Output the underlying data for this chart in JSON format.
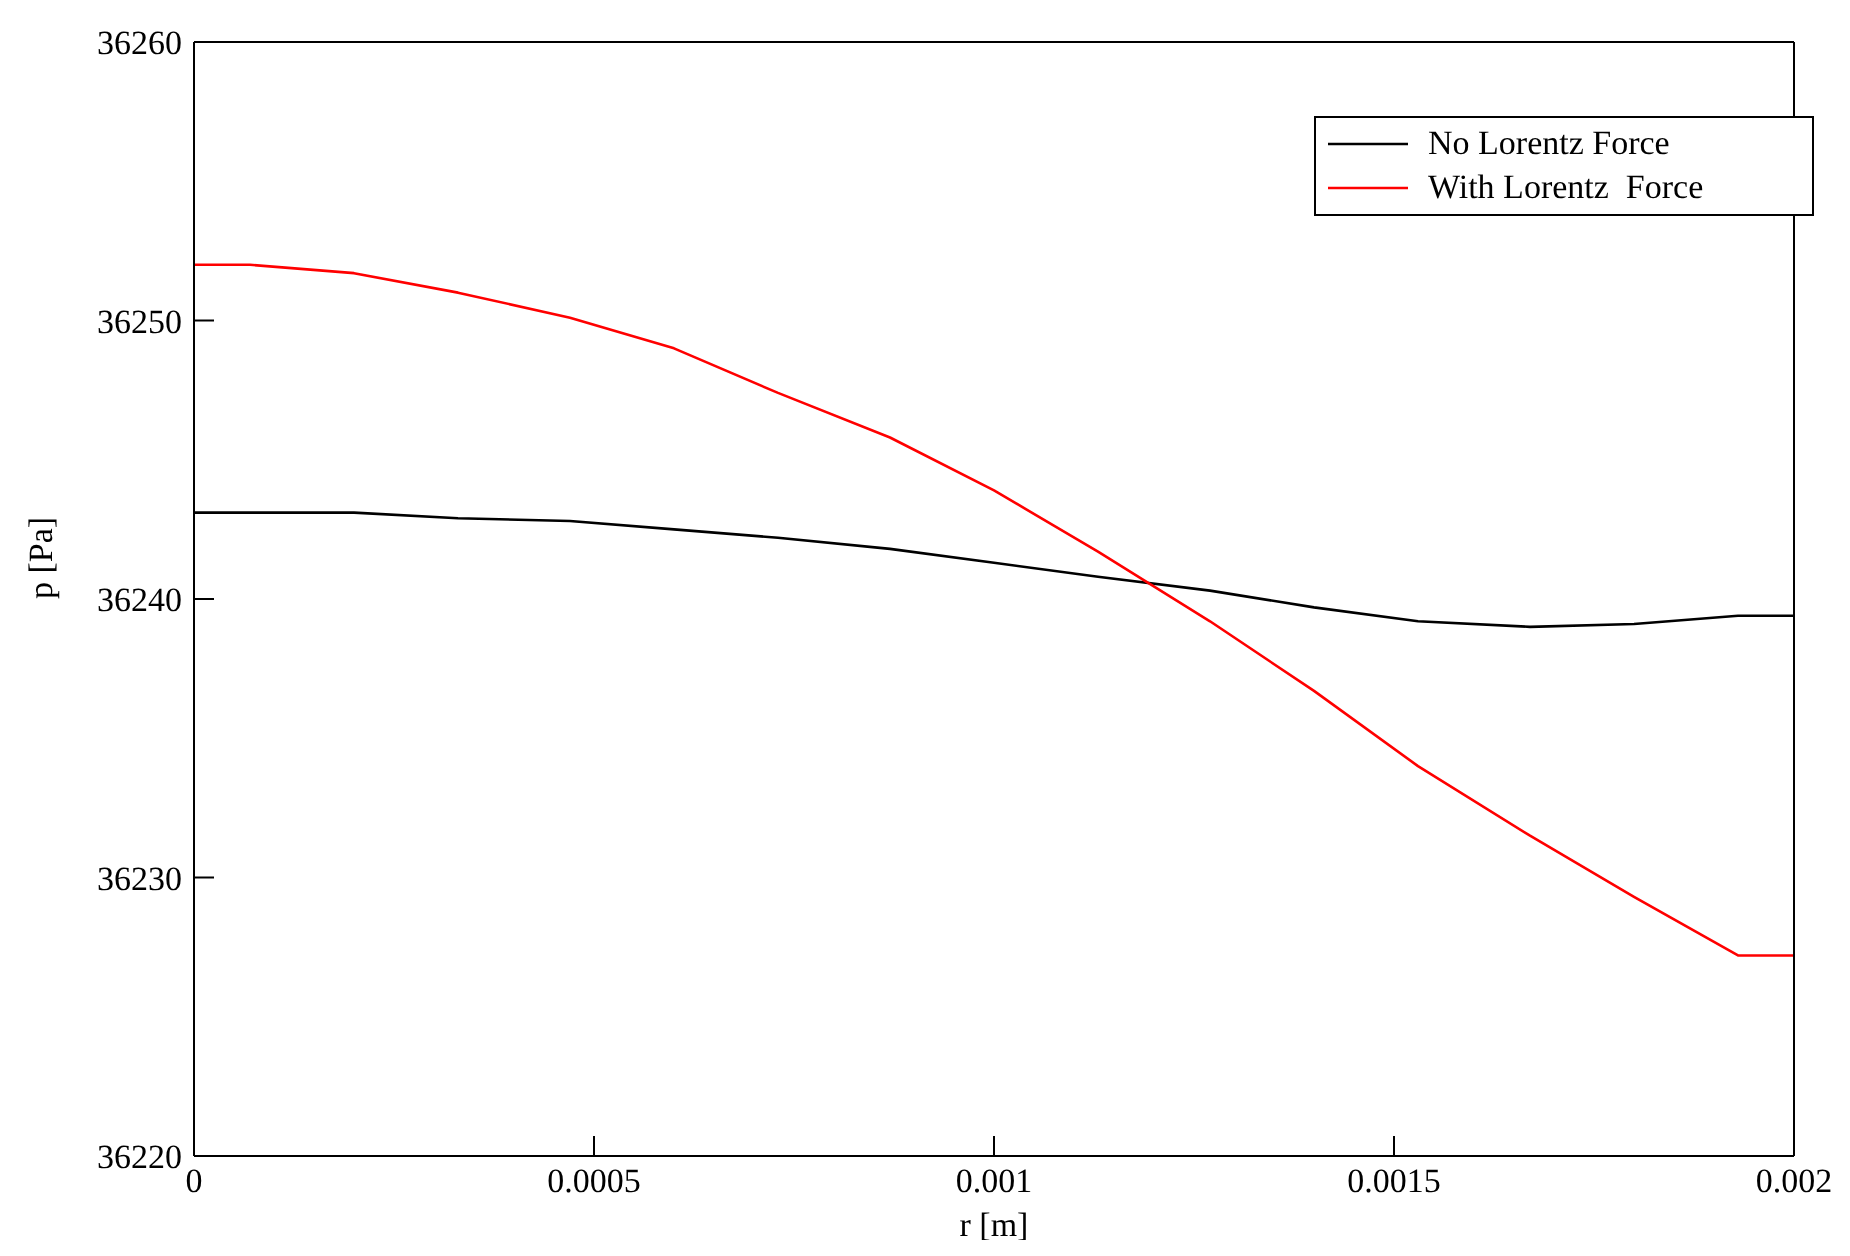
{
  "chart_data": {
    "type": "line",
    "xlabel": "r [m]",
    "ylabel": "p [Pa]",
    "xlim": [
      0,
      0.002
    ],
    "xticks": [
      0,
      0.0005,
      0.001,
      0.0015,
      0.002
    ],
    "ylim": [
      36220,
      36260
    ],
    "yticks": [
      36220,
      36230,
      36240,
      36250,
      36260
    ],
    "legend": "top right",
    "marker": "none",
    "line_style": "solid",
    "series": [
      {
        "name": "No Lorentz Force",
        "color": "#000000",
        "x": [
          0,
          0.0002,
          0.00033,
          0.00047,
          0.0006,
          0.00073,
          0.00087,
          0.001,
          0.00113,
          0.00127,
          0.0014,
          0.00153,
          0.00167,
          0.0018,
          0.00193,
          0.002
        ],
        "values": [
          36243.1,
          36243.1,
          36242.9,
          36242.8,
          36242.5,
          36242.2,
          36241.8,
          36241.3,
          36240.8,
          36240.3,
          36239.7,
          36239.2,
          36239.0,
          36239.1,
          36239.4,
          36239.4
        ]
      },
      {
        "name": "With Lorentz  Force",
        "color": "#ff0000",
        "x": [
          0,
          7e-05,
          0.0002,
          0.00033,
          0.00047,
          0.0006,
          0.00073,
          0.00087,
          0.001,
          0.00113,
          0.00127,
          0.0014,
          0.00153,
          0.00167,
          0.0018,
          0.00193,
          0.002
        ],
        "values": [
          36252.0,
          36252.0,
          36251.7,
          36251.0,
          36250.1,
          36249.0,
          36247.4,
          36245.8,
          36243.9,
          36241.7,
          36239.2,
          36236.7,
          36234.0,
          36231.5,
          36229.3,
          36227.2,
          36227.2
        ]
      }
    ]
  }
}
